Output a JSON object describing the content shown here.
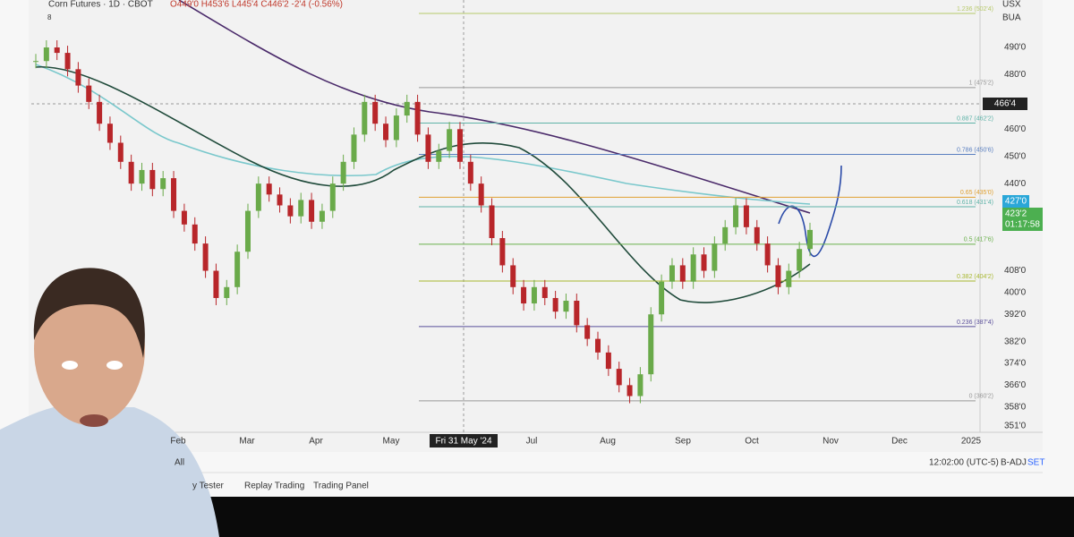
{
  "header": {
    "symbol": "Corn Futures · 1D · CBOT",
    "ohlc": "O449'0 H453'6 L445'4 C446'2 -2'4 (-0.56%)",
    "badge": "8",
    "currency": "USX",
    "unit": "BUA"
  },
  "price_axis": [
    {
      "value": 490,
      "label": "490'0"
    },
    {
      "value": 480,
      "label": "480'0"
    },
    {
      "value": 460,
      "label": "460'0"
    },
    {
      "value": 450,
      "label": "450'0"
    },
    {
      "value": 440,
      "label": "440'0"
    },
    {
      "value": 408,
      "label": "408'0"
    },
    {
      "value": 400,
      "label": "400'0"
    },
    {
      "value": 392,
      "label": "392'0"
    },
    {
      "value": 382,
      "label": "382'0"
    },
    {
      "value": 374,
      "label": "374'0"
    },
    {
      "value": 366,
      "label": "366'0"
    },
    {
      "value": 358,
      "label": "358'0"
    },
    {
      "value": 351,
      "label": "351'0"
    }
  ],
  "price_tags": {
    "crosshair": "466'4",
    "level": "427'0",
    "last": "423'2",
    "countdown": "01:17:58"
  },
  "fib_levels": [
    {
      "value": 502.5,
      "label": "1.236 (502'4)",
      "color": "#b7c96a"
    },
    {
      "value": 475.25,
      "label": "1 (475'2)",
      "color": "#999999"
    },
    {
      "value": 462.25,
      "label": "0.887 (462'2)",
      "color": "#5fb3a8"
    },
    {
      "value": 450.75,
      "label": "0.786 (450'6)",
      "color": "#5a7fc0"
    },
    {
      "value": 435,
      "label": "0.65 (435'0)",
      "color": "#e0a030"
    },
    {
      "value": 431.5,
      "label": "0.618 (431'4)",
      "color": "#5fb3a8"
    },
    {
      "value": 417.75,
      "label": "0.5 (417'6)",
      "color": "#6ab04c"
    },
    {
      "value": 404.25,
      "label": "0.382 (404'2)",
      "color": "#a8b830"
    },
    {
      "value": 387.5,
      "label": "0.236 (387'4)",
      "color": "#5a4f9a"
    },
    {
      "value": 360.25,
      "label": "0 (360'2)",
      "color": "#999999"
    }
  ],
  "candles": [
    485,
    490,
    488,
    482,
    476,
    470,
    462,
    455,
    448,
    440,
    445,
    438,
    442,
    430,
    425,
    418,
    408,
    398,
    402,
    415,
    430,
    440,
    436,
    432,
    428,
    434,
    426,
    430,
    440,
    448,
    458,
    470,
    462,
    456,
    465,
    470,
    458,
    448,
    452,
    460,
    448,
    440,
    432,
    420,
    410,
    402,
    396,
    402,
    398,
    393,
    397,
    388,
    383,
    378,
    372,
    366,
    362,
    370,
    392,
    404,
    410,
    404,
    414,
    408,
    418,
    424,
    432,
    424,
    418,
    410,
    402,
    408,
    416,
    423
  ],
  "time_axis": [
    "Feb",
    "Mar",
    "Apr",
    "May",
    "Fri 31 May '24",
    "Jul",
    "Aug",
    "Sep",
    "Oct",
    "Nov",
    "Dec",
    "2025"
  ],
  "bottom": {
    "range": "All",
    "time": "12:02:00 (UTC-5)",
    "adj": "B-ADJ",
    "set": "SET",
    "tabs": [
      "y Tester",
      "Replay Trading",
      "Trading Panel"
    ]
  }
}
